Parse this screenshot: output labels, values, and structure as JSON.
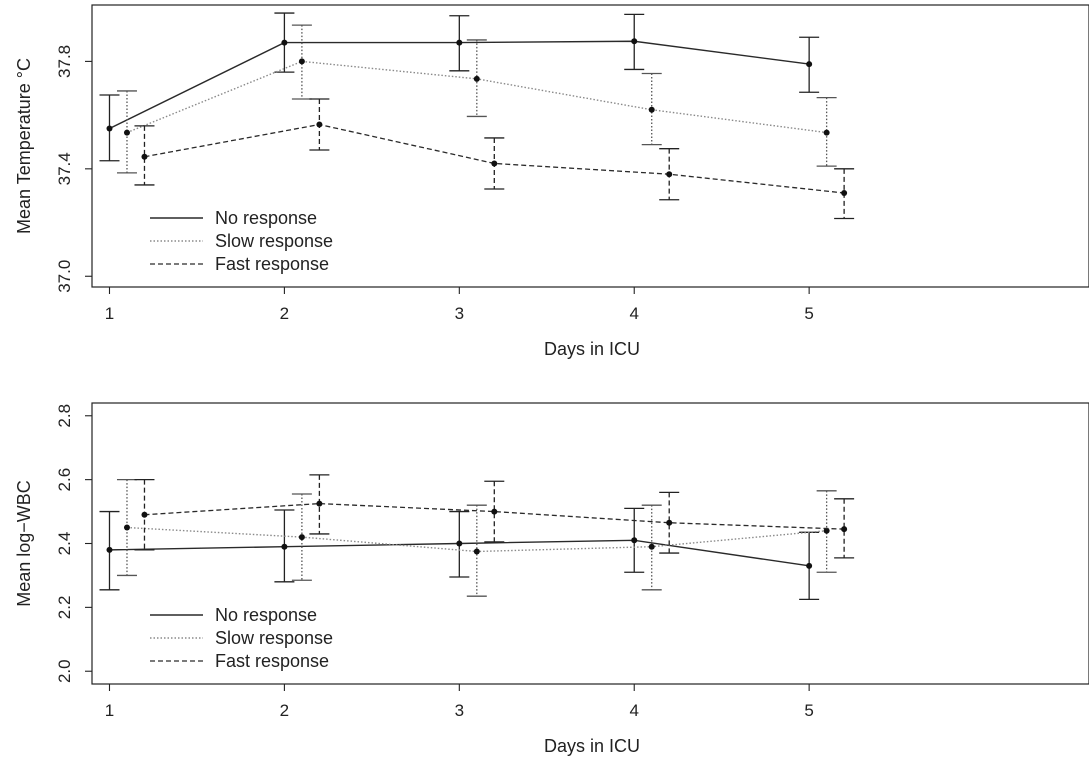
{
  "chart_data": [
    {
      "type": "line",
      "xlabel": "Days in ICU",
      "ylabel": "Mean Temperature °C",
      "x": [
        1,
        2,
        3,
        4,
        5
      ],
      "xlim": [
        0.9,
        6.6
      ],
      "ylim": [
        36.96,
        38.01
      ],
      "xticks": [
        "1",
        "2",
        "3",
        "4",
        "5"
      ],
      "yticks": [
        "37.0",
        "37.4",
        "37.8"
      ],
      "ytick_values": [
        37.0,
        37.4,
        37.8
      ],
      "legend_position": "bottom-left",
      "grid": false,
      "series": [
        {
          "name": "No response",
          "style": "solid",
          "offset": 0,
          "values": [
            37.55,
            37.87,
            37.87,
            37.875,
            37.79
          ],
          "lower": [
            37.43,
            37.76,
            37.765,
            37.77,
            37.685
          ],
          "upper": [
            37.675,
            37.98,
            37.97,
            37.975,
            37.89
          ]
        },
        {
          "name": "Slow response",
          "style": "dotted",
          "offset": 0.1,
          "values": [
            37.535,
            37.8,
            37.735,
            37.62,
            37.535
          ],
          "lower": [
            37.385,
            37.66,
            37.595,
            37.49,
            37.41
          ],
          "upper": [
            37.69,
            37.935,
            37.88,
            37.755,
            37.665
          ]
        },
        {
          "name": "Fast response",
          "style": "dashed",
          "offset": 0.2,
          "values": [
            37.445,
            37.565,
            37.42,
            37.38,
            37.31
          ],
          "lower": [
            37.34,
            37.47,
            37.325,
            37.285,
            37.215
          ],
          "upper": [
            37.56,
            37.66,
            37.515,
            37.475,
            37.4
          ]
        }
      ]
    },
    {
      "type": "line",
      "xlabel": "Days in ICU",
      "ylabel": "Mean log−WBC",
      "x": [
        1,
        2,
        3,
        4,
        5
      ],
      "xlim": [
        0.9,
        6.6
      ],
      "ylim": [
        1.96,
        2.84
      ],
      "xticks": [
        "1",
        "2",
        "3",
        "4",
        "5"
      ],
      "yticks": [
        "2.0",
        "2.2",
        "2.4",
        "2.6",
        "2.8"
      ],
      "ytick_values": [
        2.0,
        2.2,
        2.4,
        2.6,
        2.8
      ],
      "legend_position": "bottom-left",
      "grid": false,
      "series": [
        {
          "name": "No response",
          "style": "solid",
          "offset": 0,
          "values": [
            2.38,
            2.39,
            2.4,
            2.41,
            2.33
          ],
          "lower": [
            2.255,
            2.28,
            2.295,
            2.31,
            2.225
          ],
          "upper": [
            2.5,
            2.505,
            2.5,
            2.51,
            2.435
          ]
        },
        {
          "name": "Slow response",
          "style": "dotted",
          "offset": 0.1,
          "values": [
            2.45,
            2.42,
            2.375,
            2.39,
            2.44
          ],
          "lower": [
            2.3,
            2.285,
            2.235,
            2.255,
            2.31
          ],
          "upper": [
            2.6,
            2.555,
            2.52,
            2.52,
            2.565
          ]
        },
        {
          "name": "Fast response",
          "style": "dashed",
          "offset": 0.2,
          "values": [
            2.49,
            2.525,
            2.5,
            2.465,
            2.445
          ],
          "lower": [
            2.38,
            2.43,
            2.405,
            2.37,
            2.355
          ],
          "upper": [
            2.6,
            2.615,
            2.595,
            2.56,
            2.54
          ]
        }
      ]
    }
  ]
}
